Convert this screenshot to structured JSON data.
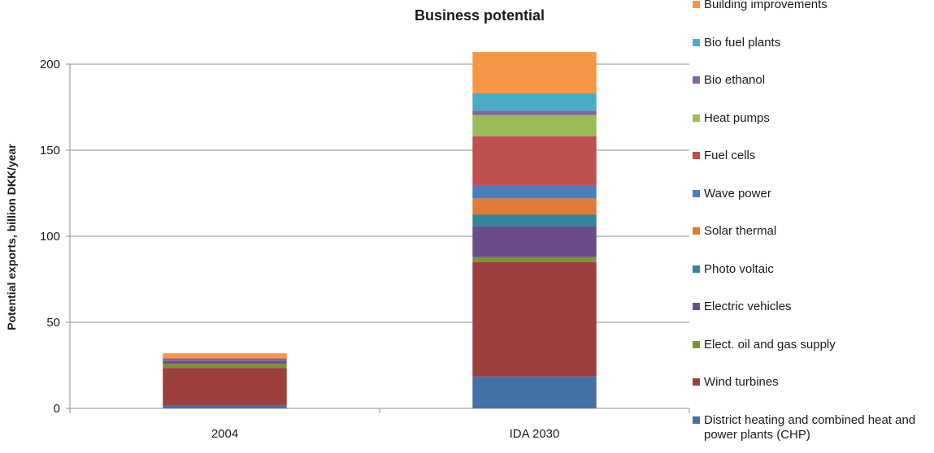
{
  "chart_data": {
    "type": "bar",
    "stacked": true,
    "title": "Business potential",
    "xlabel": "",
    "ylabel": "Potential exports, billion DKK/year",
    "ylim": [
      0,
      200
    ],
    "yticks": [
      0,
      50,
      100,
      150,
      200
    ],
    "grid": true,
    "legend_position": "right",
    "categories": [
      "2004",
      "IDA 2030"
    ],
    "series": [
      {
        "name": "District heating and combined heat and power plants (CHP)",
        "color": "#4472a8",
        "values": [
          1.5,
          18.5
        ]
      },
      {
        "name": "Wind turbines",
        "color": "#9c3f3d",
        "values": [
          22,
          66.5
        ]
      },
      {
        "name": "Elect. oil and gas supply",
        "color": "#77933c",
        "values": [
          2.5,
          3
        ]
      },
      {
        "name": "Electric vehicles",
        "color": "#6a4c8a",
        "values": [
          1.5,
          18
        ]
      },
      {
        "name": "Photo voltaic",
        "color": "#31869b",
        "values": [
          0,
          6.5
        ]
      },
      {
        "name": "Solar thermal",
        "color": "#e07b39",
        "values": [
          0,
          9.5
        ]
      },
      {
        "name": "Wave power",
        "color": "#4a7ebf",
        "values": [
          0,
          7.5
        ]
      },
      {
        "name": "Fuel cells",
        "color": "#c0504d",
        "values": [
          0,
          28.5
        ]
      },
      {
        "name": "Heat pumps",
        "color": "#9bbb59",
        "values": [
          0,
          12.5
        ]
      },
      {
        "name": "Bio ethanol",
        "color": "#8064a2",
        "values": [
          1.5,
          2.5
        ]
      },
      {
        "name": "Bio fuel plants",
        "color": "#4bacc6",
        "values": [
          0,
          10
        ]
      },
      {
        "name": "Building improvements",
        "color": "#f79646",
        "values": [
          3,
          24
        ]
      }
    ]
  }
}
